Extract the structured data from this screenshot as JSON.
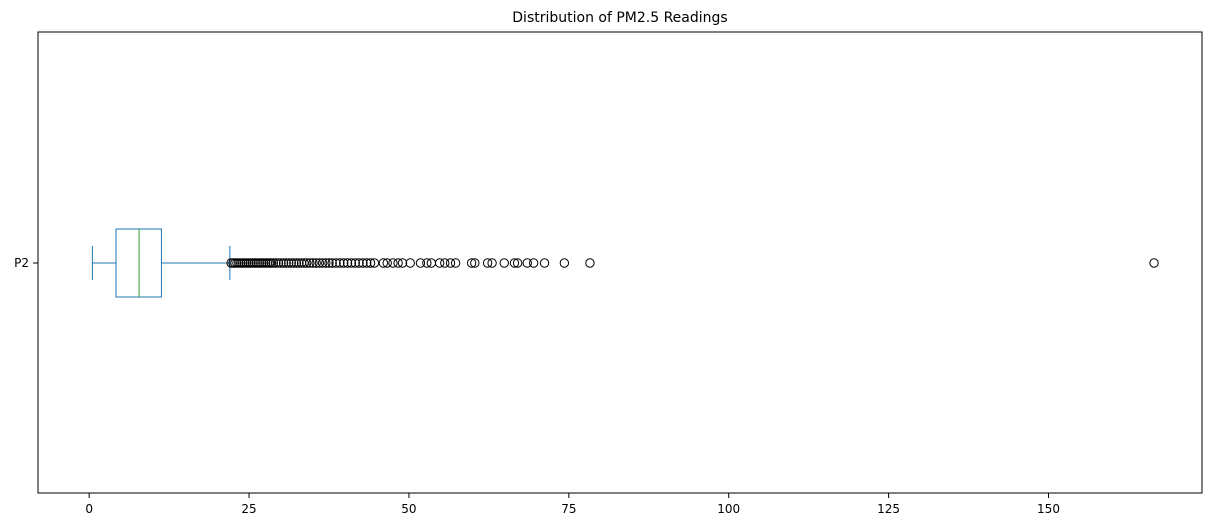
{
  "chart_data": {
    "type": "boxplot",
    "orientation": "horizontal",
    "title": "Distribution of PM2.5 Readings",
    "xlabel": "",
    "ylabel": "",
    "xlim": [
      -8,
      174
    ],
    "xticks": [
      0,
      25,
      50,
      75,
      100,
      125,
      150
    ],
    "categories": [
      "P2"
    ],
    "grid": false,
    "legend": "none",
    "colors": {
      "box": "#1f77b4",
      "median": "#2ca02c",
      "outlier_edge": "#000000",
      "axes": "#000000"
    },
    "box": {
      "whisker_low": 0.5,
      "q1": 4.2,
      "median": 7.8,
      "q3": 11.3,
      "whisker_high": 22.0
    },
    "outliers": [
      22.2,
      22.5,
      22.8,
      23.1,
      23.4,
      23.7,
      24.0,
      24.3,
      24.6,
      24.9,
      25.2,
      25.5,
      25.8,
      26.1,
      26.4,
      26.7,
      27.0,
      27.3,
      27.6,
      27.9,
      28.2,
      28.5,
      28.8,
      29.2,
      29.6,
      30.0,
      30.4,
      30.8,
      31.2,
      31.6,
      32.0,
      32.4,
      32.8,
      33.2,
      33.6,
      34.0,
      34.5,
      35.0,
      35.5,
      36.0,
      36.5,
      37.0,
      37.5,
      38.0,
      38.6,
      39.2,
      39.8,
      40.4,
      41.0,
      41.6,
      42.2,
      42.8,
      43.4,
      44.0,
      44.6,
      46.0,
      46.6,
      47.5,
      48.3,
      49.0,
      50.2,
      51.8,
      52.8,
      53.5,
      54.8,
      55.6,
      56.5,
      57.3,
      59.8,
      60.3,
      62.3,
      63.0,
      64.9,
      66.5,
      67.0,
      68.5,
      69.5,
      71.2,
      74.3,
      78.3,
      166.5
    ]
  }
}
